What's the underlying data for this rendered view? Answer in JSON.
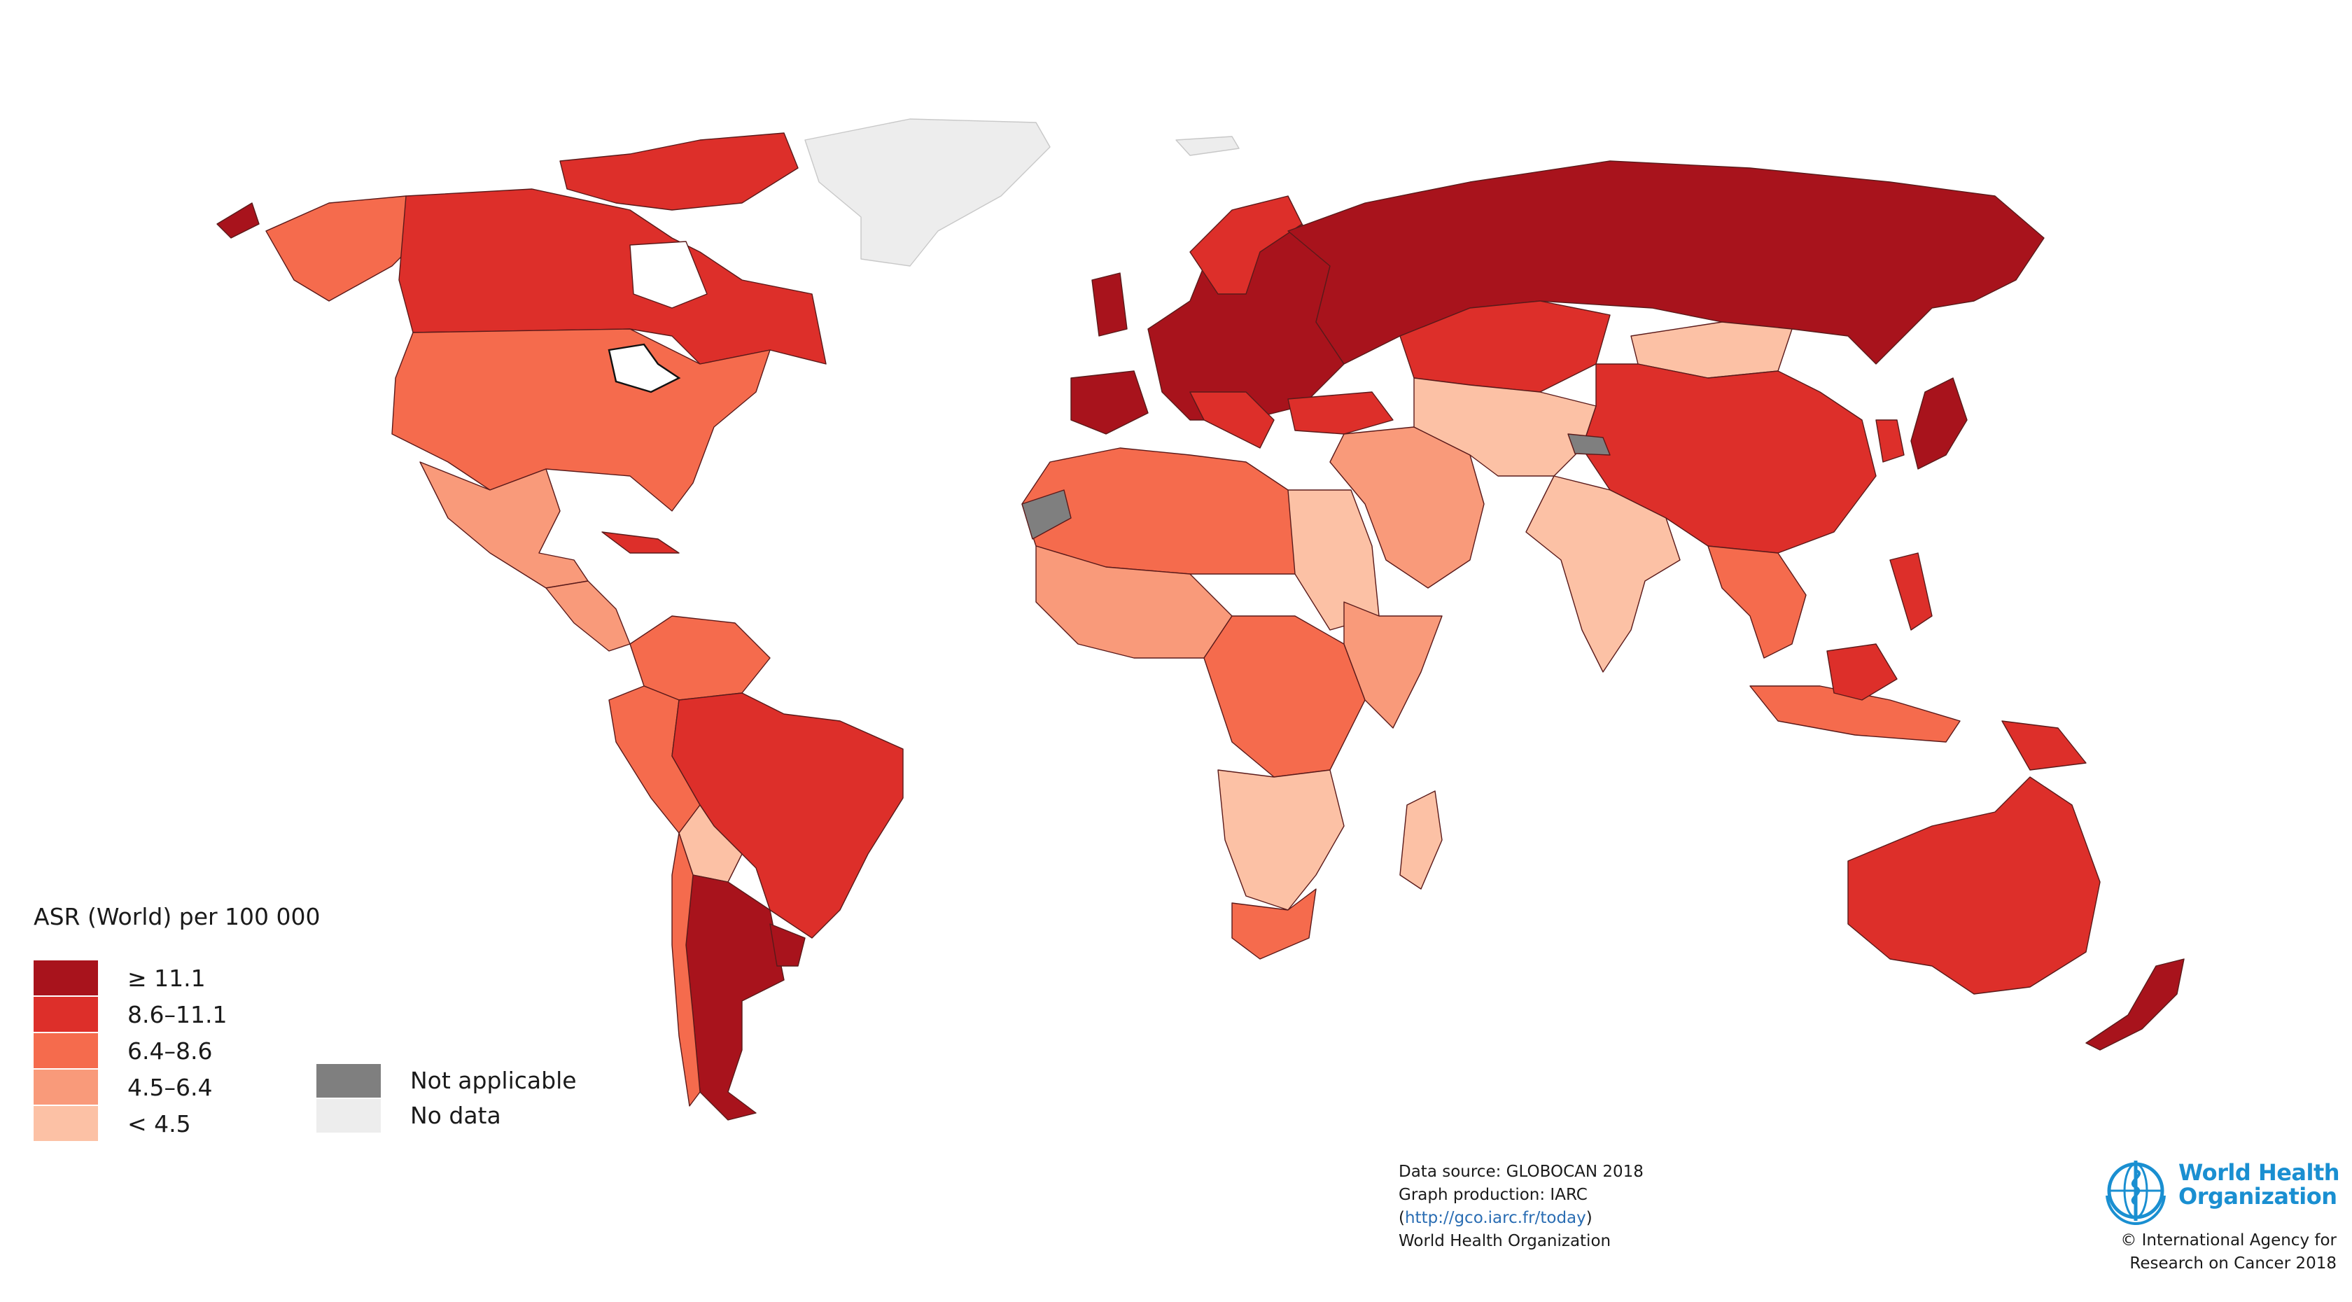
{
  "legend": {
    "title": "ASR (World) per 100 000",
    "classes": [
      {
        "label": "≥ 11.1",
        "color": "#a8131c"
      },
      {
        "label": "8.6–11.1",
        "color": "#dd2f2a"
      },
      {
        "label": "6.4–8.6",
        "color": "#f56b4d"
      },
      {
        "label": "4.5–6.4",
        "color": "#f99a7a"
      },
      {
        "label": "< 4.5",
        "color": "#fcc1a5"
      }
    ],
    "extra": [
      {
        "label": "Not applicable",
        "color": "#7f7f7f"
      },
      {
        "label": "No data",
        "color": "#ededed"
      }
    ]
  },
  "source": {
    "line1": "Data source: GLOBOCAN 2018",
    "line2": "Graph production: IARC",
    "url": "http://gco.iarc.fr/today",
    "paren_open": "(",
    "paren_close": ")",
    "line4": "World Health Organization"
  },
  "who": {
    "name_line1": "World Health",
    "name_line2": "Organization",
    "copyright_line1": "© International Agency for",
    "copyright_line2": "Research on Cancer 2018"
  },
  "map_regions": [
    {
      "region": "Canada",
      "class": "8.6–11.1"
    },
    {
      "region": "United States",
      "class": "6.4–8.6"
    },
    {
      "region": "Alaska",
      "class": "6.4–8.6"
    },
    {
      "region": "Greenland",
      "class": "No data"
    },
    {
      "region": "Mexico",
      "class": "4.5–6.4"
    },
    {
      "region": "Brazil",
      "class": "8.6–11.1"
    },
    {
      "region": "Argentina",
      "class": "≥ 11.1"
    },
    {
      "region": "Europe",
      "class": "≥ 11.1"
    },
    {
      "region": "Russia",
      "class": "≥ 11.1"
    },
    {
      "region": "China",
      "class": "8.6–11.1"
    },
    {
      "region": "India",
      "class": "< 4.5"
    },
    {
      "region": "Mongolia",
      "class": "< 4.5"
    },
    {
      "region": "Kazakhstan",
      "class": "8.6–11.1"
    },
    {
      "region": "Australia",
      "class": "8.6–11.1"
    },
    {
      "region": "New Zealand",
      "class": "≥ 11.1"
    },
    {
      "region": "Japan",
      "class": "≥ 11.1"
    },
    {
      "region": "Central Africa",
      "class": "6.4–8.6"
    },
    {
      "region": "Southern Africa",
      "class": "< 4.5"
    },
    {
      "region": "South Africa",
      "class": "6.4–8.6"
    },
    {
      "region": "Western Sahara",
      "class": "Not applicable"
    }
  ]
}
